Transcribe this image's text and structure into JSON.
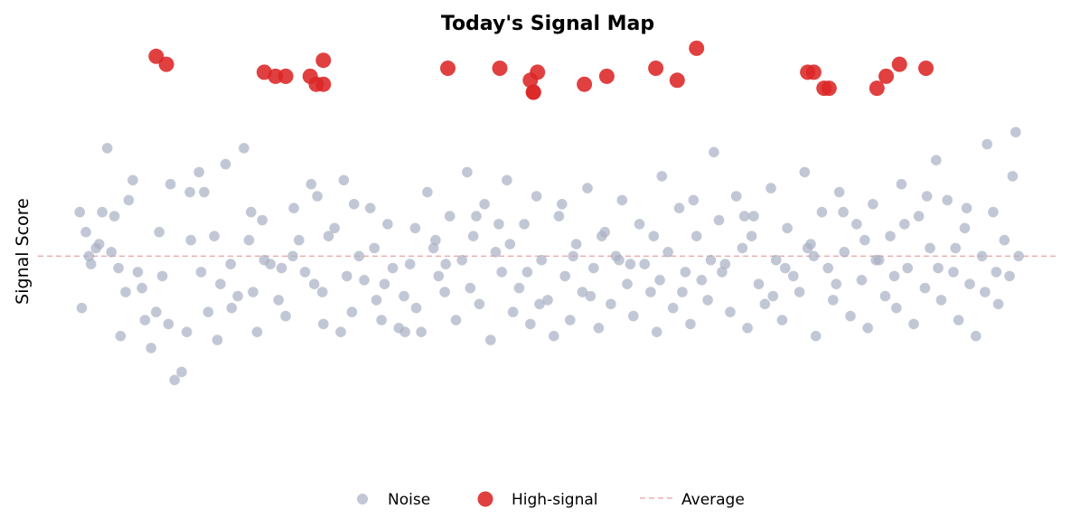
{
  "chart_data": {
    "type": "scatter",
    "title": "Today's Signal Map",
    "xlabel": "",
    "ylabel": "Signal Score",
    "xlim": [
      0,
      100
    ],
    "ylim": [
      0,
      100
    ],
    "grid": false,
    "legend_position": "bottom-center",
    "average": 47.0,
    "colors": {
      "noise": "#aab2c5",
      "high": "#dc2626",
      "average": "#e8a0a0"
    },
    "legend": {
      "noise": "Noise",
      "high": "High-signal",
      "average": "Average"
    },
    "series": [
      {
        "name": "Noise",
        "points": [
          [
            4.1,
            58
          ],
          [
            4.7,
            53
          ],
          [
            5.2,
            45
          ],
          [
            5.7,
            49
          ],
          [
            6.3,
            58
          ],
          [
            6.8,
            74
          ],
          [
            7.2,
            48
          ],
          [
            7.9,
            44
          ],
          [
            8.1,
            27
          ],
          [
            8.6,
            38
          ],
          [
            9.3,
            66
          ],
          [
            9.8,
            43
          ],
          [
            10.5,
            31
          ],
          [
            11.1,
            24
          ],
          [
            11.6,
            33
          ],
          [
            12.2,
            42
          ],
          [
            12.8,
            30
          ],
          [
            13.4,
            16
          ],
          [
            14.1,
            18
          ],
          [
            14.6,
            28
          ],
          [
            15.0,
            51
          ],
          [
            15.8,
            68
          ],
          [
            16.3,
            63
          ],
          [
            16.7,
            33
          ],
          [
            17.3,
            52
          ],
          [
            17.9,
            40
          ],
          [
            18.4,
            70
          ],
          [
            18.9,
            45
          ],
          [
            19.6,
            37
          ],
          [
            20.2,
            74
          ],
          [
            20.7,
            51
          ],
          [
            21.1,
            38
          ],
          [
            21.5,
            28
          ],
          [
            22.2,
            46
          ],
          [
            22.8,
            45
          ],
          [
            23.6,
            36
          ],
          [
            24.3,
            32
          ],
          [
            25.1,
            59
          ],
          [
            25.6,
            51
          ],
          [
            26.2,
            43
          ],
          [
            26.8,
            65
          ],
          [
            27.4,
            62
          ],
          [
            27.9,
            38
          ],
          [
            28.5,
            52
          ],
          [
            29.1,
            54
          ],
          [
            29.7,
            28
          ],
          [
            30.3,
            42
          ],
          [
            30.8,
            33
          ],
          [
            31.5,
            47
          ],
          [
            32.0,
            41
          ],
          [
            32.6,
            59
          ],
          [
            33.2,
            36
          ],
          [
            33.7,
            31
          ],
          [
            34.3,
            55
          ],
          [
            34.8,
            44
          ],
          [
            35.4,
            29
          ],
          [
            35.9,
            37
          ],
          [
            36.5,
            45
          ],
          [
            37.1,
            34
          ],
          [
            37.6,
            28
          ],
          [
            38.2,
            63
          ],
          [
            38.8,
            49
          ],
          [
            39.3,
            42
          ],
          [
            39.9,
            38
          ],
          [
            40.4,
            57
          ],
          [
            41.0,
            31
          ],
          [
            41.6,
            46
          ],
          [
            42.1,
            68
          ],
          [
            42.7,
            52
          ],
          [
            43.3,
            35
          ],
          [
            43.8,
            60
          ],
          [
            44.4,
            26
          ],
          [
            44.9,
            48
          ],
          [
            45.5,
            43
          ],
          [
            46.0,
            66
          ],
          [
            46.6,
            33
          ],
          [
            47.2,
            39
          ],
          [
            47.7,
            55
          ],
          [
            48.3,
            30
          ],
          [
            48.9,
            62
          ],
          [
            49.4,
            46
          ],
          [
            50.0,
            36
          ],
          [
            50.6,
            27
          ],
          [
            51.1,
            57
          ],
          [
            51.7,
            42
          ],
          [
            52.2,
            31
          ],
          [
            52.8,
            50
          ],
          [
            53.4,
            38
          ],
          [
            53.9,
            64
          ],
          [
            54.5,
            44
          ],
          [
            55.0,
            29
          ],
          [
            55.6,
            53
          ],
          [
            56.2,
            35
          ],
          [
            56.7,
            47
          ],
          [
            57.3,
            61
          ],
          [
            57.8,
            40
          ],
          [
            58.4,
            32
          ],
          [
            59.0,
            55
          ],
          [
            59.5,
            45
          ],
          [
            60.1,
            38
          ],
          [
            60.7,
            28
          ],
          [
            61.2,
            67
          ],
          [
            61.8,
            48
          ],
          [
            62.3,
            34
          ],
          [
            62.9,
            59
          ],
          [
            63.5,
            43
          ],
          [
            64.0,
            30
          ],
          [
            64.6,
            52
          ],
          [
            65.1,
            41
          ],
          [
            65.7,
            36
          ],
          [
            66.3,
            73
          ],
          [
            66.8,
            56
          ],
          [
            67.4,
            45
          ],
          [
            67.9,
            33
          ],
          [
            68.5,
            62
          ],
          [
            69.1,
            49
          ],
          [
            69.6,
            29
          ],
          [
            70.2,
            57
          ],
          [
            70.7,
            40
          ],
          [
            71.3,
            35
          ],
          [
            71.9,
            64
          ],
          [
            72.4,
            46
          ],
          [
            73.0,
            31
          ],
          [
            73.5,
            54
          ],
          [
            74.1,
            42
          ],
          [
            74.7,
            38
          ],
          [
            75.2,
            68
          ],
          [
            75.8,
            50
          ],
          [
            76.3,
            27
          ],
          [
            76.9,
            58
          ],
          [
            77.5,
            44
          ],
          [
            78.0,
            36
          ],
          [
            78.6,
            63
          ],
          [
            79.1,
            48
          ],
          [
            79.7,
            32
          ],
          [
            80.3,
            55
          ],
          [
            80.8,
            41
          ],
          [
            81.4,
            29
          ],
          [
            81.9,
            60
          ],
          [
            82.5,
            46
          ],
          [
            83.1,
            37
          ],
          [
            83.6,
            52
          ],
          [
            84.2,
            34
          ],
          [
            84.7,
            65
          ],
          [
            85.3,
            44
          ],
          [
            85.9,
            30
          ],
          [
            86.4,
            57
          ],
          [
            87.0,
            39
          ],
          [
            87.5,
            49
          ],
          [
            88.1,
            71
          ],
          [
            88.6,
            36
          ],
          [
            89.2,
            61
          ],
          [
            89.8,
            43
          ],
          [
            90.3,
            31
          ],
          [
            90.9,
            54
          ],
          [
            91.4,
            40
          ],
          [
            92.0,
            27
          ],
          [
            92.6,
            47
          ],
          [
            93.1,
            75
          ],
          [
            93.7,
            58
          ],
          [
            94.2,
            35
          ],
          [
            94.8,
            51
          ],
          [
            95.3,
            42
          ],
          [
            95.9,
            78
          ],
          [
            4.3,
            34
          ],
          [
            6.0,
            50
          ],
          [
            8.9,
            61
          ],
          [
            11.9,
            53
          ],
          [
            14.9,
            63
          ],
          [
            17.6,
            26
          ],
          [
            20.9,
            58
          ],
          [
            23.9,
            44
          ],
          [
            27.1,
            40
          ],
          [
            30.0,
            66
          ],
          [
            33.0,
            49
          ],
          [
            36.0,
            28
          ],
          [
            39.0,
            51
          ],
          [
            42.4,
            39
          ],
          [
            45.2,
            55
          ],
          [
            48.0,
            43
          ],
          [
            51.4,
            60
          ],
          [
            54.2,
            37
          ],
          [
            57.0,
            46
          ],
          [
            60.4,
            52
          ],
          [
            63.2,
            38
          ],
          [
            66.0,
            46
          ],
          [
            69.3,
            57
          ],
          [
            72.1,
            37
          ],
          [
            75.5,
            49
          ],
          [
            78.3,
            40
          ],
          [
            81.1,
            51
          ],
          [
            84.0,
            42
          ],
          [
            87.2,
            62
          ],
          [
            90.0,
            49
          ],
          [
            92.9,
            38
          ],
          [
            95.6,
            67
          ],
          [
            5.0,
            47
          ],
          [
            7.5,
            57
          ],
          [
            10.2,
            39
          ],
          [
            13.0,
            65
          ],
          [
            16.0,
            43
          ],
          [
            19.0,
            34
          ],
          [
            22.0,
            56
          ],
          [
            25.0,
            47
          ],
          [
            28.0,
            30
          ],
          [
            31.0,
            60
          ],
          [
            34.0,
            40
          ],
          [
            37.0,
            54
          ],
          [
            40.0,
            45
          ],
          [
            43.0,
            57
          ],
          [
            46.3,
            50
          ],
          [
            49.2,
            35
          ],
          [
            52.5,
            47
          ],
          [
            55.3,
            52
          ],
          [
            58.1,
            45
          ],
          [
            61.0,
            41
          ],
          [
            64.3,
            61
          ],
          [
            67.1,
            43
          ],
          [
            70.0,
            52
          ],
          [
            73.3,
            44
          ],
          [
            76.1,
            47
          ],
          [
            79.0,
            58
          ],
          [
            82.2,
            46
          ],
          [
            85.0,
            55
          ],
          [
            88.3,
            44
          ],
          [
            91.1,
            59
          ],
          [
            94.0,
            43
          ],
          [
            96.2,
            47
          ]
        ]
      },
      {
        "name": "High-signal",
        "points": [
          [
            11.6,
            97
          ],
          [
            12.6,
            95
          ],
          [
            22.2,
            93
          ],
          [
            23.3,
            92
          ],
          [
            24.3,
            92
          ],
          [
            26.7,
            92
          ],
          [
            27.3,
            90
          ],
          [
            28.0,
            90
          ],
          [
            28.0,
            96
          ],
          [
            40.2,
            94
          ],
          [
            45.3,
            94
          ],
          [
            48.3,
            91
          ],
          [
            48.6,
            88
          ],
          [
            48.6,
            88
          ],
          [
            49.0,
            93
          ],
          [
            53.6,
            90
          ],
          [
            55.8,
            92
          ],
          [
            60.6,
            94
          ],
          [
            62.7,
            91
          ],
          [
            64.6,
            99
          ],
          [
            75.5,
            93
          ],
          [
            76.1,
            93
          ],
          [
            77.1,
            89
          ],
          [
            77.6,
            89
          ],
          [
            82.3,
            89
          ],
          [
            83.2,
            92
          ],
          [
            84.5,
            95
          ],
          [
            87.1,
            94
          ]
        ]
      }
    ]
  }
}
